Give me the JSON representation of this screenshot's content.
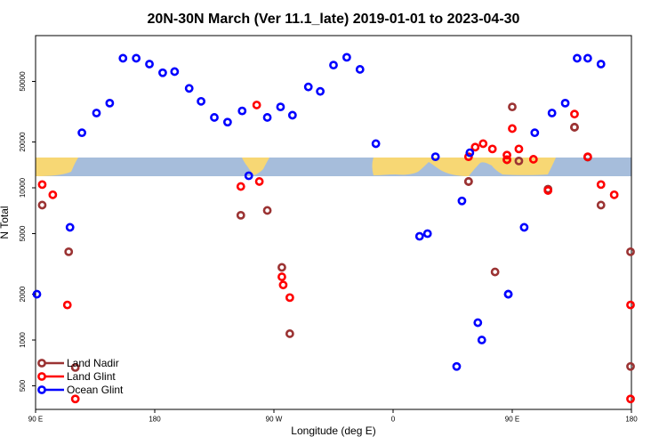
{
  "chart_data": {
    "type": "scatter",
    "title": "20N-30N March (Ver 11.1_late)   2019-01-01 to 2023-04-30",
    "xlabel": "Longitude (deg E)",
    "ylabel": "N Total",
    "xscale": "linear",
    "yscale": "log",
    "xlim": [
      90,
      540
    ],
    "ylim": [
      350,
      100000
    ],
    "x_ticks": [
      {
        "value": 90,
        "label": "90 E"
      },
      {
        "value": 180,
        "label": "180"
      },
      {
        "value": 270,
        "label": "90 W"
      },
      {
        "value": 360,
        "label": "0"
      },
      {
        "value": 450,
        "label": "90 E"
      },
      {
        "value": 540,
        "label": "180"
      }
    ],
    "y_ticks": [
      {
        "value": 500,
        "label": "500"
      },
      {
        "value": 1000,
        "label": "1000"
      },
      {
        "value": 2000,
        "label": "2000"
      },
      {
        "value": 5000,
        "label": "5000"
      },
      {
        "value": 10000,
        "label": "10000"
      },
      {
        "value": 20000,
        "label": "20000"
      },
      {
        "value": 50000,
        "label": "50000"
      }
    ],
    "legend_position": "bottom-left",
    "map_band": {
      "description": "world map strip",
      "ocean_color": "#a6bddb",
      "land_color": "#f7d774"
    },
    "series": [
      {
        "name": "Land Nadir",
        "color": "#9b3333",
        "points": [
          [
            95,
            7700
          ],
          [
            115,
            3800
          ],
          [
            120,
            660
          ],
          [
            245,
            6600
          ],
          [
            265,
            7100
          ],
          [
            276,
            3000
          ],
          [
            282,
            1100
          ],
          [
            417,
            11000
          ],
          [
            417,
            11000
          ],
          [
            437,
            2800
          ],
          [
            446,
            15300
          ],
          [
            450,
            34000
          ],
          [
            455,
            15000
          ],
          [
            477,
            9800
          ],
          [
            497,
            25000
          ],
          [
            497,
            25000
          ],
          [
            507,
            15900
          ],
          [
            517,
            7700
          ],
          [
            545,
            3800
          ],
          [
            551,
            670
          ]
        ]
      },
      {
        "name": "Land Glint",
        "color": "#ff0000",
        "points": [
          [
            95,
            10500
          ],
          [
            103,
            9000
          ],
          [
            114,
            1700
          ],
          [
            120,
            410
          ],
          [
            245,
            10200
          ],
          [
            257,
            35000
          ],
          [
            259,
            11000
          ],
          [
            276,
            2600
          ],
          [
            277,
            2300
          ],
          [
            282,
            1900
          ],
          [
            417,
            16000
          ],
          [
            422,
            18500
          ],
          [
            428,
            19500
          ],
          [
            435,
            18000
          ],
          [
            446,
            16400
          ],
          [
            446,
            15300
          ],
          [
            450,
            24500
          ],
          [
            455,
            18000
          ],
          [
            466,
            15400
          ],
          [
            477,
            9600
          ],
          [
            497,
            30500
          ],
          [
            507,
            16000
          ],
          [
            517,
            10500
          ],
          [
            527,
            9000
          ],
          [
            544,
            1700
          ],
          [
            551,
            410
          ]
        ]
      },
      {
        "name": "Ocean Glint",
        "color": "#0000ff",
        "points": [
          [
            91,
            2000
          ],
          [
            116,
            5500
          ],
          [
            125,
            23000
          ],
          [
            136,
            31000
          ],
          [
            146,
            36000
          ],
          [
            156,
            71000
          ],
          [
            166,
            71000
          ],
          [
            176,
            65000
          ],
          [
            186,
            57000
          ],
          [
            195,
            58000
          ],
          [
            206,
            45000
          ],
          [
            215,
            37000
          ],
          [
            225,
            29000
          ],
          [
            235,
            27000
          ],
          [
            246,
            32000
          ],
          [
            251,
            12000
          ],
          [
            265,
            29000
          ],
          [
            275,
            34000
          ],
          [
            284,
            30000
          ],
          [
            296,
            46000
          ],
          [
            305,
            43000
          ],
          [
            315,
            64000
          ],
          [
            325,
            72000
          ],
          [
            335,
            60000
          ],
          [
            347,
            19500
          ],
          [
            380,
            4800
          ],
          [
            386,
            5000
          ],
          [
            392,
            16000
          ],
          [
            408,
            670
          ],
          [
            412,
            8200
          ],
          [
            418,
            17000
          ],
          [
            424,
            1300
          ],
          [
            427,
            1000
          ],
          [
            447,
            2000
          ],
          [
            447,
            2000
          ],
          [
            459,
            5500
          ],
          [
            467,
            23000
          ],
          [
            480,
            31000
          ],
          [
            490,
            36000
          ],
          [
            499,
            71000
          ],
          [
            507,
            71000
          ],
          [
            517,
            65000
          ]
        ]
      }
    ]
  }
}
